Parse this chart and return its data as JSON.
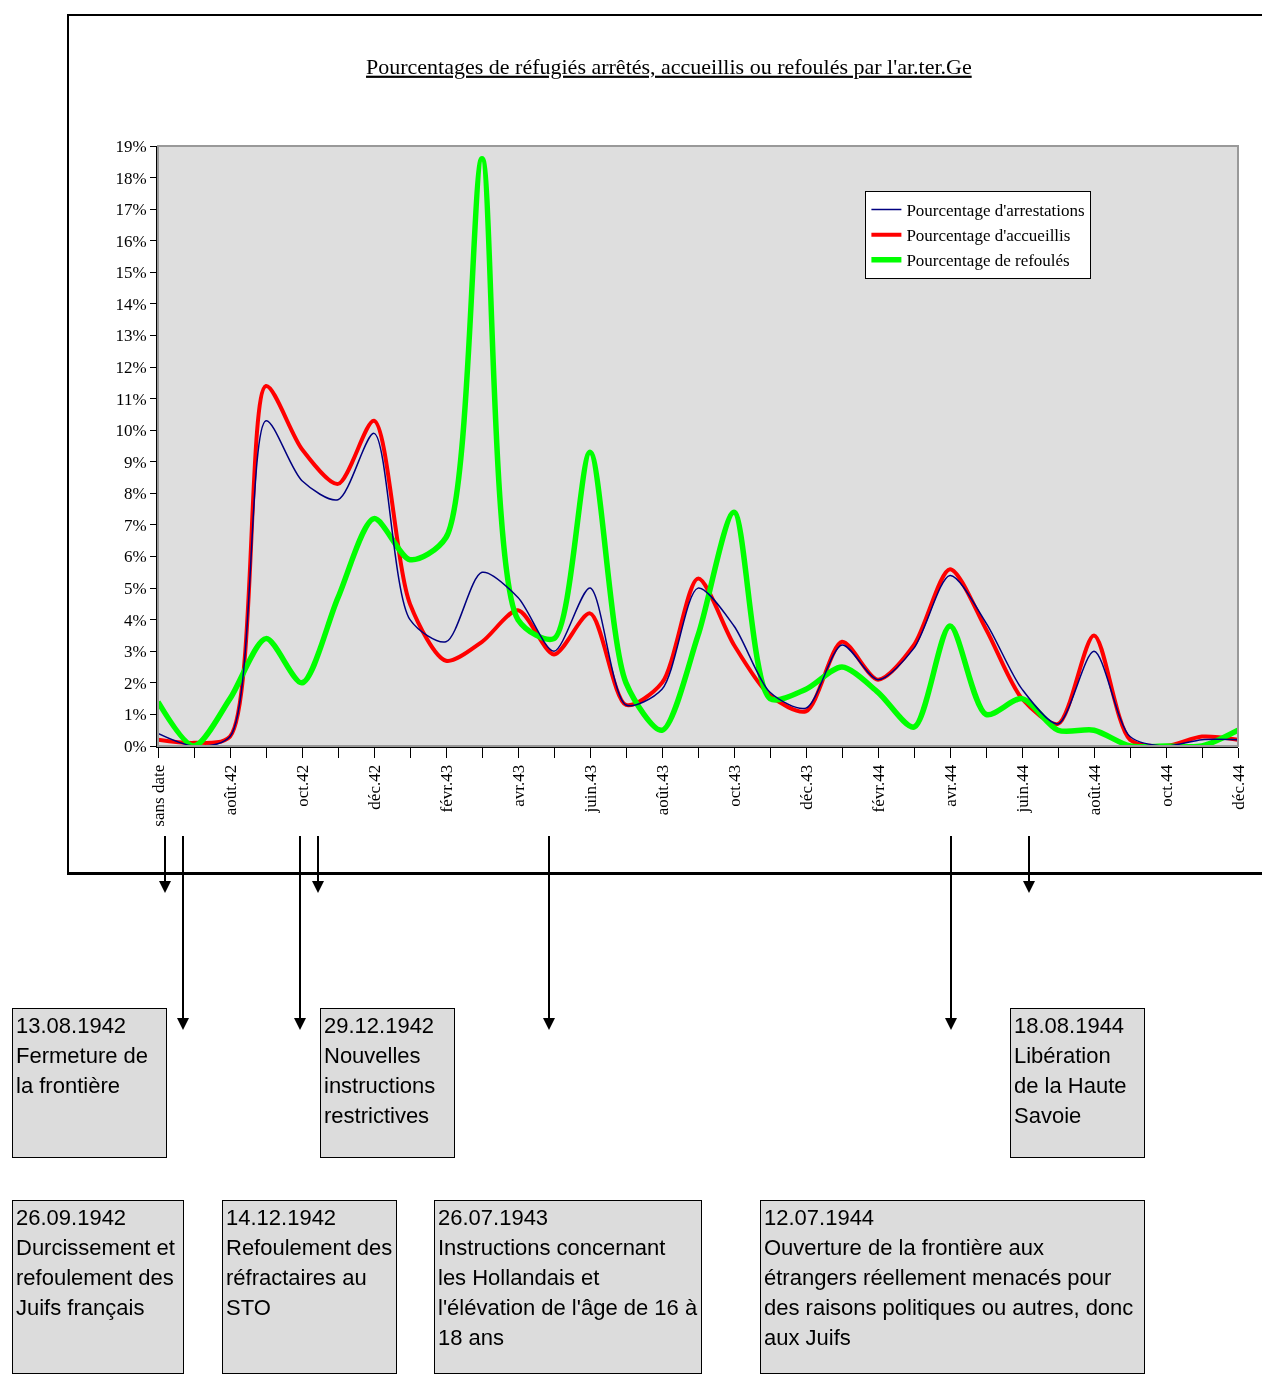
{
  "chart_data": {
    "type": "line",
    "title": "Pourcentages de réfugiés arrêtés, accueillis ou refoulés par l'ar.ter.Ge",
    "categories": [
      "sans date",
      null,
      "août.42",
      null,
      "oct.42",
      null,
      "déc.42",
      null,
      "févr.43",
      null,
      "avr.43",
      null,
      "juin.43",
      null,
      "août.43",
      null,
      "oct.43",
      null,
      "déc.43",
      null,
      "févr.44",
      null,
      "avr.44",
      null,
      "juin.44",
      null,
      "août.44",
      null,
      "oct.44",
      null,
      "déc.44"
    ],
    "series": [
      {
        "name": "Pourcentage d'arrestations",
        "color": "#000080",
        "values": [
          0.4,
          0.0,
          0.3,
          10.3,
          8.4,
          7.8,
          9.9,
          4.0,
          3.3,
          5.5,
          4.7,
          3.0,
          5.0,
          1.3,
          1.8,
          5.0,
          3.8,
          1.7,
          1.2,
          3.2,
          2.1,
          3.1,
          5.4,
          3.9,
          1.8,
          0.7,
          3.0,
          0.3,
          0.0,
          0.2,
          0.2
        ]
      },
      {
        "name": "Pourcentage d'accueillis",
        "color": "#ff0000",
        "values": [
          0.2,
          0.1,
          0.3,
          11.4,
          9.4,
          8.3,
          10.3,
          4.5,
          2.7,
          3.3,
          4.3,
          2.9,
          4.2,
          1.3,
          2.0,
          5.3,
          3.2,
          1.6,
          1.1,
          3.3,
          2.1,
          3.2,
          5.6,
          3.7,
          1.5,
          0.7,
          3.5,
          0.2,
          0.0,
          0.3,
          0.2
        ]
      },
      {
        "name": "Pourcentage de refoulés",
        "color": "#00ff00",
        "values": [
          1.4,
          0.0,
          1.5,
          3.4,
          2.0,
          4.7,
          7.2,
          5.9,
          6.6,
          18.6,
          4.0,
          3.4,
          9.3,
          2.0,
          0.5,
          3.5,
          7.4,
          1.5,
          1.8,
          2.5,
          1.7,
          0.6,
          3.8,
          1.0,
          1.5,
          0.5,
          0.5,
          0.0,
          0.0,
          0.0,
          0.5
        ]
      }
    ],
    "ylim": [
      0,
      19
    ],
    "yticks": [
      {
        "value": 0,
        "label": "0%"
      },
      {
        "value": 1,
        "label": "1%"
      },
      {
        "value": 2,
        "label": "2%"
      },
      {
        "value": 3,
        "label": "3%"
      },
      {
        "value": 4,
        "label": "4%"
      },
      {
        "value": 5,
        "label": "5%"
      },
      {
        "value": 6,
        "label": "6%"
      },
      {
        "value": 7,
        "label": "7%"
      },
      {
        "value": 8,
        "label": "8%"
      },
      {
        "value": 9,
        "label": "9%"
      },
      {
        "value": 10,
        "label": "10%"
      },
      {
        "value": 11,
        "label": "11%"
      },
      {
        "value": 12,
        "label": "12%"
      },
      {
        "value": 13,
        "label": "13%"
      },
      {
        "value": 14,
        "label": "14%"
      },
      {
        "value": 15,
        "label": "15%"
      },
      {
        "value": 16,
        "label": "16%"
      },
      {
        "value": 17,
        "label": "17%"
      },
      {
        "value": 18,
        "label": "18%"
      },
      {
        "value": 19,
        "label": "19%"
      }
    ],
    "legend": "top right",
    "annotations": [
      "13.08.1942\nFermeture de la frontière",
      "29.12.1942\nNouvelles instructions restrictives",
      "18.08.1944\nLibération de la Haute Savoie",
      "26.09.1942\nDurcissement et refoulement des Juifs français",
      "14.12.1942\nRefoulement des réfractaires au STO",
      "26.07.1943\nInstructions concernant les Hollandais et l'élévation de l'âge de 16 à 18 ans",
      "12.07.1944\nOuverture de la frontière aux étrangers réellement menacés pour des raisons politiques ou autres, donc aux Juifs"
    ]
  }
}
